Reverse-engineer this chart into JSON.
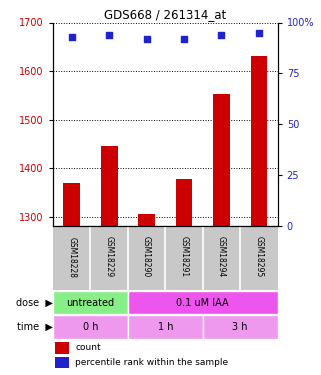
{
  "title": "GDS668 / 261314_at",
  "samples": [
    "GSM18228",
    "GSM18229",
    "GSM18290",
    "GSM18291",
    "GSM18294",
    "GSM18295"
  ],
  "bar_values": [
    1370,
    1445,
    1305,
    1378,
    1553,
    1630
  ],
  "dot_values": [
    93,
    94,
    92,
    92,
    94,
    95
  ],
  "ylim_left": [
    1280,
    1700
  ],
  "ylim_right": [
    0,
    100
  ],
  "yticks_left": [
    1300,
    1400,
    1500,
    1600,
    1700
  ],
  "yticks_right": [
    0,
    25,
    50,
    75,
    100
  ],
  "bar_color": "#cc0000",
  "dot_color": "#2222cc",
  "bar_width": 0.45,
  "dose_groups": [
    {
      "label": "untreated",
      "start": 0,
      "end": 2,
      "color": "#88ee88"
    },
    {
      "label": "0.1 uM IAA",
      "start": 2,
      "end": 6,
      "color": "#ee55ee"
    }
  ],
  "time_groups": [
    {
      "label": "0 h",
      "start": 0,
      "end": 2,
      "color": "#ee99ee"
    },
    {
      "label": "1 h",
      "start": 2,
      "end": 4,
      "color": "#ee99ee"
    },
    {
      "label": "3 h",
      "start": 4,
      "end": 6,
      "color": "#ee99ee"
    }
  ],
  "legend_items": [
    {
      "label": "count",
      "color": "#cc0000"
    },
    {
      "label": "percentile rank within the sample",
      "color": "#2222cc"
    }
  ],
  "left_axis_color": "#cc0000",
  "right_axis_color": "#2222cc",
  "grid_color": "black",
  "label_area_color": "#c8c8c8",
  "dose_label": "dose",
  "time_label": "time",
  "background_color": "#ffffff"
}
